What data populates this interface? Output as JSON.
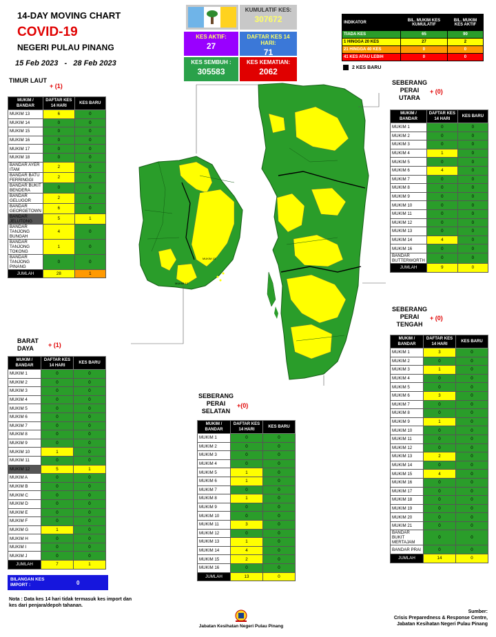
{
  "header": {
    "line1": "14-DAY MOVING CHART",
    "line2": "COVID-19",
    "line3": "NEGERI PULAU PINANG",
    "date_from": "15 Feb 2023",
    "date_sep": "-",
    "date_to": "28 Feb 2023"
  },
  "stats": {
    "kumulatif_label": "KUMULATIF KES:",
    "kumulatif_value": "307672",
    "aktif_label": "KES AKTIF:",
    "aktif_value": "27",
    "daftar_label": "DAFTAR KES 14 HARI:",
    "daftar_value": "71",
    "sembuh_label": "KES SEMBUH :",
    "sembuh_value": "305583",
    "kematian_label": "KES KEMATIAN:",
    "kematian_value": "2062"
  },
  "indicator": {
    "headers": [
      "INDIKATOR",
      "BIL. MUKIM KES KUMULATIF",
      "BIL. MUKIM KES AKTIF"
    ],
    "rows": [
      {
        "label": "TIADA KES",
        "kumulatif": "65",
        "aktif": "90"
      },
      {
        "label": "1 HINGGA 20 KES",
        "kumulatif": "27",
        "aktif": "2"
      },
      {
        "label": "21 HINGGA 40 KES",
        "kumulatif": "0",
        "aktif": "0"
      },
      {
        "label": "41 KES ATAU LEBIH",
        "kumulatif": "0",
        "aktif": "0"
      }
    ],
    "kes_baru_legend": "2 KES BARU",
    "colors": {
      "none": "#2a9d2a",
      "low": "#ffff00",
      "mid": "#ff9900",
      "high": "#ff0000"
    }
  },
  "col_headers": {
    "mukim": "MUKIM / BANDAR",
    "daftar": "DAFTAR KES 14 HARI",
    "baru": "KES BARU",
    "jumlah": "JUMLAH"
  },
  "regions": {
    "timur_laut": {
      "name": "TIMUR LAUT",
      "new": "+ (1)",
      "rows": [
        [
          "MUKIM 13",
          "6",
          "0"
        ],
        [
          "MUKIM 14",
          "0",
          "0"
        ],
        [
          "MUKIM 15",
          "0",
          "0"
        ],
        [
          "MUKIM 16",
          "0",
          "0"
        ],
        [
          "MUKIM 17",
          "0",
          "0"
        ],
        [
          "MUKIM 18",
          "0",
          "0"
        ],
        [
          "BANDAR AYER ITAM",
          "2",
          "0"
        ],
        [
          "BANDAR BATU FERRINGGI",
          "2",
          "0"
        ],
        [
          "BANDAR BUKIT BENDERA",
          "0",
          "0"
        ],
        [
          "BANDAR GELUGOR",
          "2",
          "0"
        ],
        [
          "BANDAR GEORGETOWN",
          "6",
          "0"
        ],
        [
          "BANDAR JELUTONG",
          "5",
          "1"
        ],
        [
          "BANDAR TANJONG BUNGAH",
          "4",
          "0"
        ],
        [
          "BANDAR TANJONG TOKONG",
          "1",
          "0"
        ],
        [
          "BANDAR TANJONG PINANG",
          "0",
          "0"
        ]
      ],
      "total": [
        "28",
        "1"
      ]
    },
    "barat_daya": {
      "name": "BARAT DAYA",
      "new": "+ (1)",
      "rows": [
        [
          "MUKIM 1",
          "0",
          "0"
        ],
        [
          "MUKIM 2",
          "0",
          "0"
        ],
        [
          "MUKIM 3",
          "0",
          "0"
        ],
        [
          "MUKIM 4",
          "0",
          "0"
        ],
        [
          "MUKIM 5",
          "0",
          "0"
        ],
        [
          "MUKIM 6",
          "0",
          "0"
        ],
        [
          "MUKIM 7",
          "0",
          "0"
        ],
        [
          "MUKIM 8",
          "0",
          "0"
        ],
        [
          "MUKIM 9",
          "0",
          "0"
        ],
        [
          "MUKIM 10",
          "1",
          "0"
        ],
        [
          "MUKIM 11",
          "0",
          "0"
        ],
        [
          "MUKIM 12",
          "5",
          "1"
        ],
        [
          "MUKIM A",
          "0",
          "0"
        ],
        [
          "MUKIM B",
          "0",
          "0"
        ],
        [
          "MUKIM C",
          "0",
          "0"
        ],
        [
          "MUKIM D",
          "0",
          "0"
        ],
        [
          "MUKIM E",
          "0",
          "0"
        ],
        [
          "MUKIM F",
          "0",
          "0"
        ],
        [
          "MUKIM G",
          "1",
          "0"
        ],
        [
          "MUKIM H",
          "0",
          "0"
        ],
        [
          "MUKIM I",
          "0",
          "0"
        ],
        [
          "MUKIM J",
          "0",
          "0"
        ]
      ],
      "total": [
        "7",
        "1"
      ]
    },
    "sp_utara": {
      "name": "SEBERANG PERAI UTARA",
      "new": "+ (0)",
      "rows": [
        [
          "MUKIM 1",
          "0",
          "0"
        ],
        [
          "MUKIM 2",
          "0",
          "0"
        ],
        [
          "MUKIM 3",
          "0",
          "0"
        ],
        [
          "MUKIM 4",
          "1",
          "0"
        ],
        [
          "MUKIM 5",
          "0",
          "0"
        ],
        [
          "MUKIM 6",
          "4",
          "0"
        ],
        [
          "MUKIM 7",
          "0",
          "0"
        ],
        [
          "MUKIM 8",
          "0",
          "0"
        ],
        [
          "MUKIM 9",
          "0",
          "0"
        ],
        [
          "MUKIM 10",
          "0",
          "0"
        ],
        [
          "MUKIM 11",
          "0",
          "0"
        ],
        [
          "MUKIM 12",
          "0",
          "0"
        ],
        [
          "MUKIM 13",
          "0",
          "0"
        ],
        [
          "MUKIM 14",
          "4",
          "0"
        ],
        [
          "MUKIM 16",
          "0",
          "0"
        ],
        [
          "BANDAR BUTTERWORTH",
          "0",
          "0"
        ]
      ],
      "total": [
        "9",
        "0"
      ]
    },
    "sp_tengah": {
      "name": "SEBERANG PERAI TENGAH",
      "new": "+ (0)",
      "rows": [
        [
          "MUKIM 1",
          "3",
          "0"
        ],
        [
          "MUKIM 2",
          "0",
          "0"
        ],
        [
          "MUKIM 3",
          "1",
          "0"
        ],
        [
          "MUKIM 4",
          "0",
          "0"
        ],
        [
          "MUKIM 5",
          "0",
          "0"
        ],
        [
          "MUKIM 6",
          "3",
          "0"
        ],
        [
          "MUKIM 7",
          "0",
          "0"
        ],
        [
          "MUKIM 8",
          "0",
          "0"
        ],
        [
          "MUKIM 9",
          "1",
          "0"
        ],
        [
          "MUKIM 10",
          "0",
          "0"
        ],
        [
          "MUKIM 11",
          "0",
          "0"
        ],
        [
          "MUKIM 12",
          "0",
          "0"
        ],
        [
          "MUKIM 13",
          "2",
          "0"
        ],
        [
          "MUKIM 14",
          "0",
          "0"
        ],
        [
          "MUKIM 15",
          "4",
          "0"
        ],
        [
          "MUKIM 16",
          "0",
          "0"
        ],
        [
          "MUKIM 17",
          "0",
          "0"
        ],
        [
          "MUKIM 18",
          "0",
          "0"
        ],
        [
          "MUKIM 19",
          "0",
          "0"
        ],
        [
          "MUKIM 20",
          "0",
          "0"
        ],
        [
          "MUKIM 21",
          "0",
          "0"
        ],
        [
          "BANDAR BUKIT MERTAJAM",
          "0",
          "0"
        ],
        [
          "BANDAR PRAI",
          "0",
          "0"
        ]
      ],
      "total": [
        "14",
        "0"
      ]
    },
    "sp_selatan": {
      "name": "SEBERANG PERAI SELATAN",
      "new": "+(0)",
      "rows": [
        [
          "MUKIM 1",
          "0",
          "0"
        ],
        [
          "MUKIM 2",
          "0",
          "0"
        ],
        [
          "MUKIM 3",
          "0",
          "0"
        ],
        [
          "MUKIM 4",
          "0",
          "0"
        ],
        [
          "MUKIM 5",
          "1",
          "0"
        ],
        [
          "MUKIM 6",
          "1",
          "0"
        ],
        [
          "MUKIM 7",
          "0",
          "0"
        ],
        [
          "MUKIM 8",
          "1",
          "0"
        ],
        [
          "MUKIM 9",
          "0",
          "0"
        ],
        [
          "MUKIM 10",
          "0",
          "0"
        ],
        [
          "MUKIM 11",
          "3",
          "0"
        ],
        [
          "MUKIM 12",
          "0",
          "0"
        ],
        [
          "MUKIM 13",
          "1",
          "0"
        ],
        [
          "MUKIM 14",
          "4",
          "0"
        ],
        [
          "MUKIM 15",
          "2",
          "0"
        ],
        [
          "MUKIM 16",
          "0",
          "0"
        ]
      ],
      "total": [
        "13",
        "0"
      ]
    }
  },
  "import": {
    "label": "BILANGAN KES IMPORT :",
    "value": "0"
  },
  "note": "Nota : Data kes 14 hari tidak termasuk kes import dan kes dari penjara/depoh tahanan.",
  "source": {
    "label": "Sumber:",
    "line1": "Crisis Preparedness & Response Centre,",
    "line2": "Jabatan Kesihatan Negeri Pulau Pinang"
  },
  "department": "Jabatan Kesihatan Negeri Pulau Pinang",
  "map_labels": {
    "m1": "MUKIM 13",
    "m2": "MUKIM 12"
  },
  "chart_data": {
    "type": "table",
    "title": "14-DAY MOVING CHART COVID-19 NEGERI PULAU PINANG",
    "period": [
      "15 Feb 2023",
      "28 Feb 2023"
    ],
    "totals": {
      "kumulatif": 307672,
      "aktif": 27,
      "daftar_14_hari": 71,
      "sembuh": 305583,
      "kematian": 2062
    },
    "indicator_counts": {
      "tiada_kes": [
        65,
        90
      ],
      "1_20": [
        27,
        2
      ],
      "21_40": [
        0,
        0
      ],
      "41_plus": [
        0,
        0
      ]
    },
    "region_totals": {
      "timur_laut": 28,
      "barat_daya": 7,
      "sp_utara": 9,
      "sp_tengah": 14,
      "sp_selatan": 13
    }
  }
}
